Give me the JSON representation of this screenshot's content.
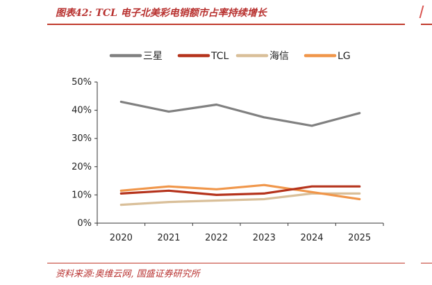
{
  "header": {
    "title": "图表42:  TCL 电子北美彩电销额市占率持续增长"
  },
  "footer": {
    "source": "资料来源:奥维云网, 国盛证券研究所"
  },
  "chart_data": {
    "type": "line",
    "title": "",
    "xlabel": "",
    "ylabel": "",
    "x": [
      "2020",
      "2021",
      "2022",
      "2023",
      "2024",
      "2025"
    ],
    "ylim": [
      0,
      50
    ],
    "yticks": [
      0,
      10,
      20,
      30,
      40,
      50
    ],
    "ytick_labels": [
      "0%",
      "10%",
      "20%",
      "30%",
      "40%",
      "50%"
    ],
    "grid": false,
    "legend_position": "top",
    "series": [
      {
        "name": "三星",
        "color": "#808080",
        "values": [
          43,
          39.5,
          42,
          37.5,
          34.5,
          39
        ]
      },
      {
        "name": "TCL",
        "color": "#b5331c",
        "values": [
          10.5,
          11.5,
          10,
          10.5,
          13,
          13
        ]
      },
      {
        "name": "海信",
        "color": "#d9bf99",
        "values": [
          6.5,
          7.5,
          8,
          8.5,
          10.5,
          10.5
        ]
      },
      {
        "name": "LG",
        "color": "#f0964a",
        "values": [
          11.5,
          13,
          12,
          13.5,
          11,
          8.5
        ]
      }
    ]
  }
}
